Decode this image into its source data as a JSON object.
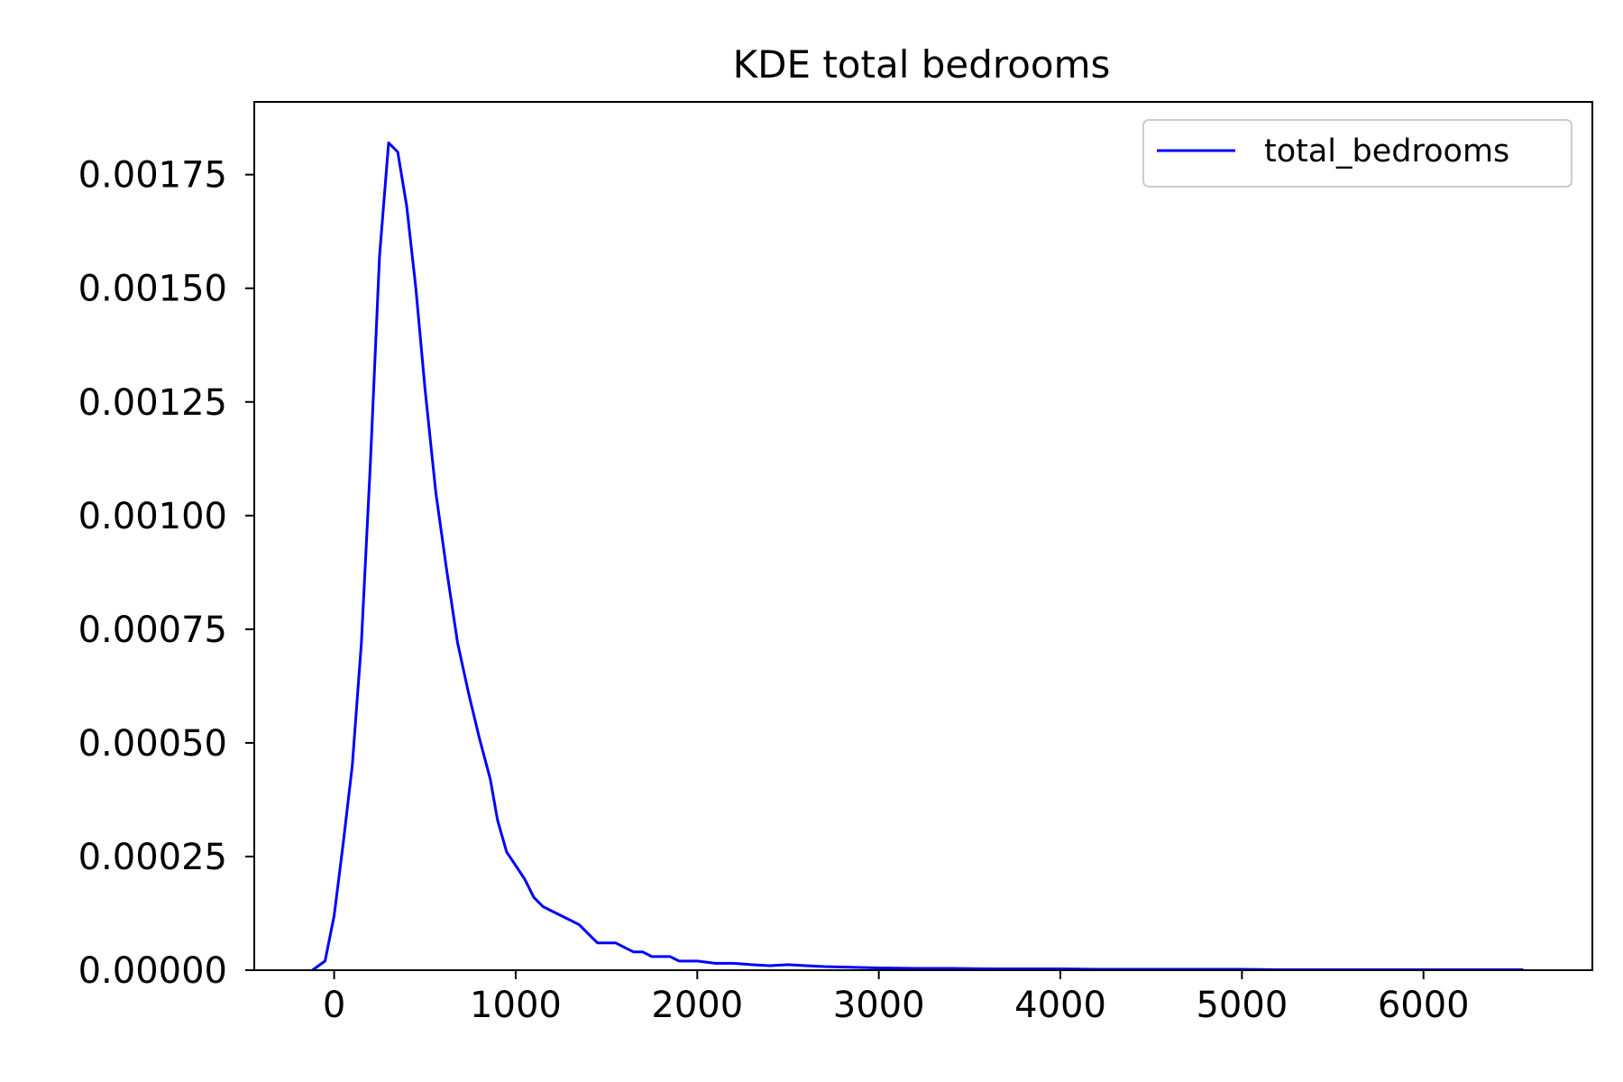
{
  "chart_data": {
    "type": "line",
    "title": "KDE total bedrooms",
    "xlabel": "",
    "ylabel": "",
    "xlim": [
      -440,
      6930
    ],
    "ylim": [
      0,
      0.00191
    ],
    "xticks": [
      0,
      1000,
      2000,
      3000,
      4000,
      5000,
      6000
    ],
    "xtick_labels": [
      "0",
      "1000",
      "2000",
      "3000",
      "4000",
      "5000",
      "6000"
    ],
    "yticks": [
      0,
      0.00025,
      0.0005,
      0.00075,
      0.001,
      0.00125,
      0.0015,
      0.00175
    ],
    "ytick_labels": [
      "0.00000",
      "0.00025",
      "0.00050",
      "0.00075",
      "0.00100",
      "0.00125",
      "0.00150",
      "0.00175"
    ],
    "grid": false,
    "legend": {
      "position": "top-right",
      "entries": [
        "total_bedrooms"
      ]
    },
    "series": [
      {
        "name": "total_bedrooms",
        "color": "#0000ff",
        "x": [
          -120,
          -50,
          0,
          50,
          100,
          150,
          200,
          250,
          300,
          350,
          400,
          450,
          500,
          560,
          620,
          680,
          740,
          800,
          860,
          900,
          950,
          1000,
          1050,
          1100,
          1150,
          1200,
          1250,
          1300,
          1350,
          1400,
          1450,
          1500,
          1550,
          1600,
          1650,
          1700,
          1750,
          1800,
          1850,
          1900,
          1950,
          2000,
          2100,
          2200,
          2300,
          2400,
          2500,
          2600,
          2700,
          2800,
          2900,
          3000,
          3200,
          3400,
          3600,
          3800,
          4000,
          4200,
          4400,
          4600,
          4800,
          5000,
          5200,
          5400,
          5600,
          5800,
          6000,
          6200,
          6400,
          6550
        ],
        "y": [
          0,
          2e-05,
          0.00012,
          0.00028,
          0.00045,
          0.00072,
          0.00112,
          0.00157,
          0.00182,
          0.0018,
          0.00168,
          0.0015,
          0.00128,
          0.00105,
          0.00088,
          0.00072,
          0.00061,
          0.00051,
          0.00042,
          0.00033,
          0.00026,
          0.00023,
          0.0002,
          0.00016,
          0.00014,
          0.00013,
          0.00012,
          0.00011,
          0.0001,
          8e-05,
          6e-05,
          6e-05,
          6e-05,
          5e-05,
          4e-05,
          4e-05,
          3e-05,
          3e-05,
          3e-05,
          2e-05,
          2e-05,
          2e-05,
          1.5e-05,
          1.5e-05,
          1.2e-05,
          1e-05,
          1.2e-05,
          1e-05,
          8e-06,
          7e-06,
          6e-06,
          5e-06,
          4e-06,
          4e-06,
          3e-06,
          3e-06,
          3e-06,
          2e-06,
          2e-06,
          2e-06,
          2e-06,
          2e-06,
          1e-06,
          1e-06,
          1e-06,
          1e-06,
          1e-06,
          1e-06,
          1e-06,
          1e-06
        ]
      }
    ]
  }
}
